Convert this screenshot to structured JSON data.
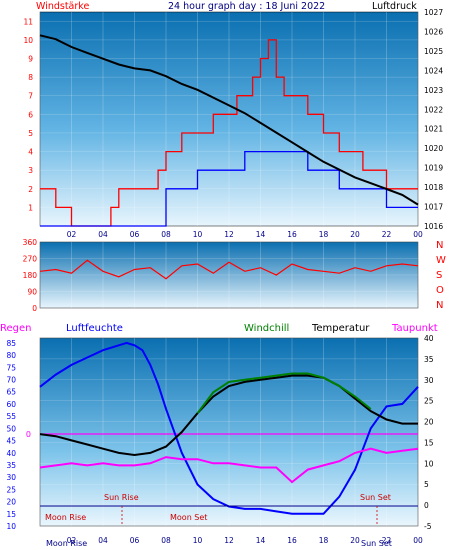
{
  "chart_data": [
    {
      "type": "line",
      "title": "24 hour graph day : 18 Juni 2022",
      "left_label": "Windstärke",
      "right_label": "Luftdruck",
      "x_ticks": [
        "02",
        "04",
        "06",
        "08",
        "10",
        "12",
        "14",
        "16",
        "18",
        "20",
        "22",
        "00"
      ],
      "y_left_ticks": [
        1,
        2,
        3,
        4,
        5,
        6,
        7,
        8,
        9,
        10,
        11
      ],
      "y_left_range": [
        0,
        11.5
      ],
      "y_right_ticks": [
        1016,
        1017,
        1018,
        1019,
        1020,
        1021,
        1022,
        1023,
        1024,
        1025,
        1026,
        1027
      ],
      "y_right_range": [
        1016,
        1027
      ],
      "series": [
        {
          "name": "Luftdruck",
          "color": "#000000",
          "x": [
            0,
            1,
            2,
            3,
            4,
            5,
            6,
            7,
            8,
            9,
            10,
            11,
            12,
            13,
            14,
            15,
            16,
            17,
            18,
            19,
            20,
            21,
            22,
            23,
            24
          ],
          "y": [
            1025.8,
            1025.6,
            1025.2,
            1024.9,
            1024.6,
            1024.3,
            1024.1,
            1024.0,
            1023.7,
            1023.3,
            1023.0,
            1022.6,
            1022.2,
            1021.8,
            1021.3,
            1020.8,
            1020.3,
            1019.8,
            1019.3,
            1018.9,
            1018.5,
            1018.2,
            1017.9,
            1017.6,
            1017.1
          ]
        },
        {
          "name": "Windstärke",
          "color": "#ff0000",
          "x": [
            0,
            0.5,
            1,
            1.5,
            2,
            2.5,
            3,
            3.5,
            4,
            4.5,
            5,
            5.5,
            6,
            6.5,
            7,
            7.5,
            8,
            8.5,
            9,
            9.5,
            10,
            10.5,
            11,
            11.5,
            12,
            12.5,
            13,
            13.5,
            14,
            14.5,
            15,
            15.5,
            16,
            16.5,
            17,
            17.5,
            18,
            18.5,
            19,
            19.5,
            20,
            20.5,
            21,
            21.5,
            22,
            22.5,
            23,
            23.5,
            24
          ],
          "y": [
            2,
            2,
            1,
            1,
            0,
            0,
            0,
            0,
            0,
            1,
            2,
            2,
            2,
            2,
            2,
            3,
            4,
            4,
            5,
            5,
            5,
            5,
            6,
            6,
            6,
            7,
            7,
            8,
            9,
            10,
            8,
            7,
            7,
            7,
            6,
            6,
            5,
            5,
            4,
            4,
            4,
            3,
            3,
            3,
            2,
            2,
            2,
            2,
            2
          ]
        },
        {
          "name": "Windstärke Mittel",
          "color": "#0000ff",
          "x": [
            0,
            1,
            2,
            3,
            4,
            5,
            6,
            7,
            8,
            9,
            10,
            11,
            12,
            13,
            14,
            15,
            16,
            17,
            18,
            19,
            20,
            21,
            22,
            23,
            24
          ],
          "y": [
            0,
            0,
            0,
            0,
            0,
            0,
            0,
            0,
            2,
            2,
            3,
            3,
            3,
            4,
            4,
            4,
            4,
            3,
            3,
            2,
            2,
            2,
            1,
            1,
            1
          ]
        }
      ]
    },
    {
      "type": "line",
      "y_ticks": [
        0,
        90,
        180,
        270,
        360
      ],
      "y_range": [
        0,
        360
      ],
      "direction_labels": [
        "N",
        "W",
        "S",
        "O",
        "N"
      ],
      "series": [
        {
          "name": "Windrichtung",
          "color": "#ff0000",
          "x": [
            0,
            1,
            2,
            3,
            4,
            5,
            6,
            7,
            8,
            9,
            10,
            11,
            12,
            13,
            14,
            15,
            16,
            17,
            18,
            19,
            20,
            21,
            22,
            23,
            24
          ],
          "y": [
            200,
            210,
            190,
            260,
            200,
            170,
            210,
            220,
            160,
            230,
            240,
            190,
            250,
            200,
            220,
            180,
            240,
            210,
            200,
            190,
            220,
            200,
            230,
            240,
            230
          ]
        }
      ]
    },
    {
      "type": "line",
      "top_labels": {
        "regen": "Regen",
        "luftfeuchte": "Luftfeuchte",
        "windchill": "Windchill",
        "temperatur": "Temperatur",
        "taupunkt": "Taupunkt"
      },
      "x_ticks": [
        "02",
        "04",
        "06",
        "08",
        "10",
        "12",
        "14",
        "16",
        "18",
        "20",
        "22",
        "00"
      ],
      "y_left_ticks": [
        10,
        15,
        20,
        25,
        30,
        35,
        40,
        45,
        50,
        55,
        60,
        65,
        70,
        75,
        80,
        85
      ],
      "y_left_range": [
        10,
        87
      ],
      "y_right_ticks": [
        -5,
        0,
        5,
        10,
        15,
        20,
        25,
        30,
        35,
        40
      ],
      "y_right_range": [
        -5,
        40
      ],
      "regen_value": "0",
      "series": [
        {
          "name": "Luftfeuchte",
          "color": "#0000ff",
          "x": [
            0,
            1,
            2,
            3,
            4,
            5,
            5.5,
            6,
            6.5,
            7,
            7.5,
            8,
            9,
            10,
            11,
            12,
            13,
            14,
            15,
            16,
            17,
            18,
            19,
            20,
            21,
            22,
            23,
            24
          ],
          "y": [
            67,
            72,
            76,
            79,
            82,
            84,
            85,
            84,
            82,
            76,
            68,
            58,
            40,
            27,
            21,
            18,
            17,
            17,
            16,
            15,
            15,
            15,
            22,
            33,
            50,
            59,
            60,
            67
          ]
        },
        {
          "name": "Temperatur",
          "color": "#000000",
          "x": [
            0,
            1,
            2,
            3,
            4,
            5,
            6,
            7,
            8,
            9,
            10,
            11,
            12,
            13,
            14,
            15,
            16,
            17,
            18,
            19,
            20,
            21,
            22,
            23,
            24
          ],
          "y": [
            17,
            16.5,
            15.5,
            14.5,
            13.5,
            12.5,
            12,
            12.5,
            14,
            17.5,
            22,
            26,
            28.5,
            29.5,
            30,
            30.5,
            31,
            31,
            30.5,
            28.5,
            25.5,
            22.5,
            20.5,
            19.5,
            19.5
          ]
        },
        {
          "name": "Windchill",
          "color": "#008000",
          "x": [
            10,
            11,
            12,
            13,
            14,
            15,
            16,
            17,
            18,
            19,
            20,
            21
          ],
          "y": [
            22,
            27,
            29.5,
            30,
            30.5,
            31,
            31.5,
            31.5,
            30.5,
            28.5,
            26,
            23
          ]
        },
        {
          "name": "Taupunkt",
          "color": "#ff00ff",
          "x": [
            0,
            1,
            2,
            3,
            4,
            5,
            6,
            7,
            8,
            9,
            10,
            11,
            12,
            13,
            14,
            15,
            16,
            17,
            18,
            19,
            20,
            21,
            22,
            23,
            24
          ],
          "y": [
            9,
            9.5,
            10,
            9.5,
            10,
            9.5,
            9.5,
            10,
            11.5,
            11,
            11,
            10,
            10,
            9.5,
            9,
            9,
            5.5,
            8.5,
            9.5,
            10.5,
            12.5,
            13.5,
            12.5,
            13,
            13.5
          ]
        }
      ],
      "sun_rise_label": "Sun Rise",
      "sun_set_label": "Sun Set",
      "moon_rise_label": "Moon Rise",
      "moon_set_label": "Moon Set",
      "bottom_overlays": {
        "moon_rise_tick": "Moon Rise",
        "sun_set_tick": "Sun Set"
      }
    }
  ]
}
